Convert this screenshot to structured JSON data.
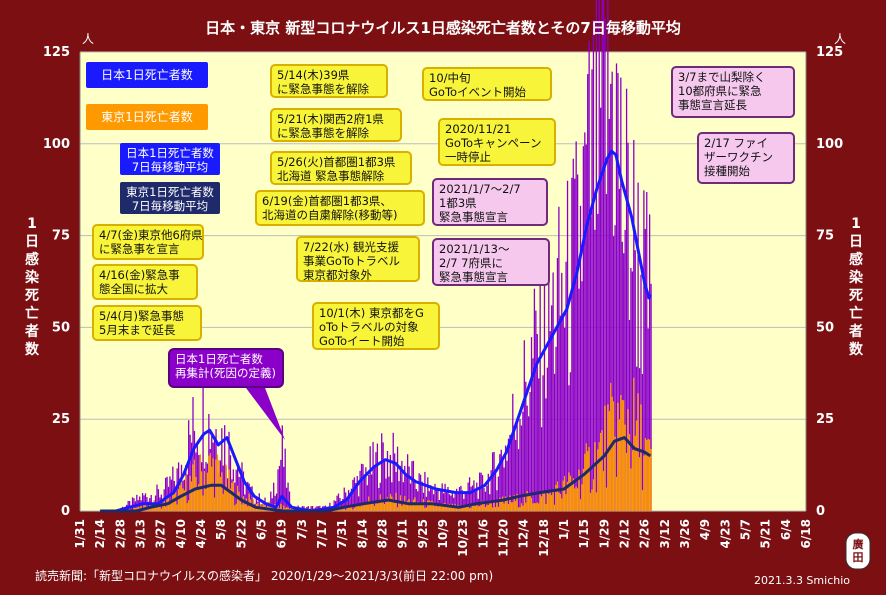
{
  "title": "日本・東京 新型コロナウイルス1日感染死亡者数とその7日毎移動平均",
  "unit_left": "人",
  "unit_right": "人",
  "ylabel": "1日感染死亡者数",
  "source": "読売新聞:「新型コロナウイルスの感染者」 2020/1/29〜2021/3/3(前日 22:00 pm)",
  "signature": "2021.3.3 Smichio",
  "seal": "廣田",
  "colors": {
    "background": "#7b0f12",
    "plot": "#ffffc8",
    "japan": "#8b00c9",
    "tokyo": "#ff9900",
    "japan_avg": "#1a1aff",
    "tokyo_avg": "#1f2a6a",
    "note": "#f7f43a",
    "note_pink": "#f6c8ee"
  },
  "legend": [
    {
      "label": "日本1日死亡者数",
      "color": "#8b00c9"
    },
    {
      "label": "東京1日死亡者数",
      "color": "#ff9900"
    },
    {
      "label": "日本1日死亡者数\n7日毎移動平均",
      "color": "#1a1aff"
    },
    {
      "label": "東京1日死亡者数\n7日毎移動平均",
      "color": "#1f2a6a"
    }
  ],
  "annotations": [
    {
      "text": "4/7(金)東京他6府県\nに緊急事を宣言",
      "style": "yellow"
    },
    {
      "text": "4/16(金)緊急事\n態全国に拡大",
      "style": "yellow"
    },
    {
      "text": "5/4(月)緊急事態\n5月末まで延長",
      "style": "yellow"
    },
    {
      "text": "5/14(木)39県\nに緊急事態を解除",
      "style": "yellow"
    },
    {
      "text": "5/21(木)関西2府1県\nに緊急事態を解除",
      "style": "yellow"
    },
    {
      "text": "5/26(火)首都圏1都3県\n北海道 緊急事態解除",
      "style": "yellow"
    },
    {
      "text": "6/19(金)首都圏1都3県、\n北海道の自粛解除(移動等)",
      "style": "yellow"
    },
    {
      "text": "7/22(水) 観光支援\n事業GoToトラベル\n東京都対象外",
      "style": "yellow"
    },
    {
      "text": "10/1(木) 東京都をG\noToトラベルの対象\nGoToイート開始",
      "style": "yellow"
    },
    {
      "text": "10/中旬\nGoToイベント開始",
      "style": "yellow"
    },
    {
      "text": "2020/11/21\nGoToキャンペーン\n一時停止",
      "style": "yellow"
    },
    {
      "text": "2021/1/7〜2/7\n1都3県\n緊急事態宣言",
      "style": "pink"
    },
    {
      "text": "2021/1/13〜\n2/7 7府県に\n緊急事態宣言",
      "style": "pink"
    },
    {
      "text": "3/7まで山梨除く\n10都府県に緊急\n事態宣言延長",
      "style": "pink"
    },
    {
      "text": "2/17 ファイ\nザーワクチン\n接種開始",
      "style": "pink"
    },
    {
      "text": "日本1日死亡者数\n再集計(死因の定義)",
      "style": "purple"
    }
  ],
  "chart_data": {
    "type": "bar",
    "title": "日本・東京 新型コロナウイルス1日感染死亡者数とその7日毎移動平均",
    "ylabel": "1日感染死亡者数",
    "ylim": [
      0,
      125
    ],
    "yticks": [
      0,
      25,
      50,
      75,
      100,
      125
    ],
    "xlim": [
      "2020-01-31",
      "2021-06-18"
    ],
    "grid": true,
    "xtick_labels": [
      "1/31",
      "2/14",
      "2/28",
      "3/13",
      "3/27",
      "4/10",
      "4/24",
      "5/8",
      "5/22",
      "6/5",
      "6/19",
      "7/3",
      "7/17",
      "7/31",
      "8/14",
      "8/28",
      "9/11",
      "9/25",
      "10/9",
      "10/23",
      "11/6",
      "11/20",
      "12/4",
      "12/18",
      "1/1",
      "1/15",
      "1/29",
      "2/12",
      "2/26",
      "3/12",
      "3/26",
      "4/9",
      "4/23",
      "5/7",
      "5/21",
      "6/4",
      "6/18"
    ],
    "series": [
      {
        "name": "日本1日死亡者数",
        "type": "bar",
        "anchors": [
          [
            "2020-02-24",
            0
          ],
          [
            "2020-03-05",
            2
          ],
          [
            "2020-03-15",
            4
          ],
          [
            "2020-03-28",
            5
          ],
          [
            "2020-04-08",
            10
          ],
          [
            "2020-04-18",
            22
          ],
          [
            "2020-04-25",
            25
          ],
          [
            "2020-05-02",
            23
          ],
          [
            "2020-05-09",
            20
          ],
          [
            "2020-05-16",
            15
          ],
          [
            "2020-05-23",
            8
          ],
          [
            "2020-05-30",
            4
          ],
          [
            "2020-06-10",
            2
          ],
          [
            "2020-06-19",
            16
          ],
          [
            "2020-06-25",
            1
          ],
          [
            "2020-07-08",
            1
          ],
          [
            "2020-07-20",
            1
          ],
          [
            "2020-07-31",
            4
          ],
          [
            "2020-08-10",
            8
          ],
          [
            "2020-08-20",
            12
          ],
          [
            "2020-08-28",
            15
          ],
          [
            "2020-09-04",
            14
          ],
          [
            "2020-09-12",
            12
          ],
          [
            "2020-09-20",
            8
          ],
          [
            "2020-10-01",
            6
          ],
          [
            "2020-10-15",
            5
          ],
          [
            "2020-10-25",
            6
          ],
          [
            "2020-11-05",
            7
          ],
          [
            "2020-11-15",
            12
          ],
          [
            "2020-11-22",
            18
          ],
          [
            "2020-11-29",
            28
          ],
          [
            "2020-12-06",
            35
          ],
          [
            "2020-12-13",
            45
          ],
          [
            "2020-12-20",
            50
          ],
          [
            "2020-12-27",
            55
          ],
          [
            "2021-01-03",
            60
          ],
          [
            "2021-01-10",
            70
          ],
          [
            "2021-01-17",
            88
          ],
          [
            "2021-01-24",
            100
          ],
          [
            "2021-01-31",
            112
          ],
          [
            "2021-02-04",
            114
          ],
          [
            "2021-02-10",
            85
          ],
          [
            "2021-02-17",
            75
          ],
          [
            "2021-02-24",
            62
          ],
          [
            "2021-03-02",
            55
          ]
        ]
      },
      {
        "name": "東京1日死亡者数",
        "type": "bar",
        "anchors": [
          [
            "2020-02-24",
            0
          ],
          [
            "2020-03-10",
            1
          ],
          [
            "2020-03-28",
            2
          ],
          [
            "2020-04-10",
            5
          ],
          [
            "2020-04-20",
            9
          ],
          [
            "2020-05-01",
            12
          ],
          [
            "2020-05-10",
            8
          ],
          [
            "2020-05-20",
            4
          ],
          [
            "2020-06-01",
            2
          ],
          [
            "2020-06-20",
            1
          ],
          [
            "2020-07-15",
            0
          ],
          [
            "2020-08-05",
            1
          ],
          [
            "2020-08-20",
            3
          ],
          [
            "2020-09-05",
            3
          ],
          [
            "2020-09-25",
            2
          ],
          [
            "2020-10-20",
            1
          ],
          [
            "2020-11-10",
            2
          ],
          [
            "2020-12-01",
            3
          ],
          [
            "2020-12-20",
            4
          ],
          [
            "2021-01-10",
            8
          ],
          [
            "2021-01-24",
            15
          ],
          [
            "2021-02-04",
            22
          ],
          [
            "2021-02-14",
            25
          ],
          [
            "2021-02-24",
            18
          ],
          [
            "2021-03-02",
            12
          ]
        ]
      },
      {
        "name": "日本1日死亡者数\n7日毎移動平均",
        "type": "line",
        "points": [
          [
            "2020-02-14",
            0
          ],
          [
            "2020-02-25",
            0
          ],
          [
            "2020-03-05",
            1
          ],
          [
            "2020-03-15",
            2
          ],
          [
            "2020-03-25",
            2
          ],
          [
            "2020-04-05",
            5
          ],
          [
            "2020-04-12",
            10
          ],
          [
            "2020-04-19",
            17
          ],
          [
            "2020-04-26",
            21
          ],
          [
            "2020-04-30",
            22
          ],
          [
            "2020-05-06",
            18
          ],
          [
            "2020-05-12",
            20
          ],
          [
            "2020-05-18",
            14
          ],
          [
            "2020-05-24",
            8
          ],
          [
            "2020-05-31",
            4
          ],
          [
            "2020-06-08",
            2
          ],
          [
            "2020-06-15",
            1
          ],
          [
            "2020-06-19",
            4
          ],
          [
            "2020-06-26",
            1
          ],
          [
            "2020-07-10",
            0
          ],
          [
            "2020-07-25",
            1
          ],
          [
            "2020-08-03",
            3
          ],
          [
            "2020-08-12",
            8
          ],
          [
            "2020-08-22",
            12
          ],
          [
            "2020-08-30",
            14
          ],
          [
            "2020-09-06",
            13
          ],
          [
            "2020-09-13",
            10
          ],
          [
            "2020-09-20",
            8
          ],
          [
            "2020-09-27",
            7
          ],
          [
            "2020-10-04",
            6
          ],
          [
            "2020-10-18",
            5
          ],
          [
            "2020-10-28",
            5
          ],
          [
            "2020-11-07",
            7
          ],
          [
            "2020-11-15",
            11
          ],
          [
            "2020-11-22",
            16
          ],
          [
            "2020-11-29",
            24
          ],
          [
            "2020-12-06",
            32
          ],
          [
            "2020-12-13",
            40
          ],
          [
            "2020-12-20",
            45
          ],
          [
            "2020-12-27",
            50
          ],
          [
            "2021-01-03",
            55
          ],
          [
            "2021-01-10",
            65
          ],
          [
            "2021-01-17",
            78
          ],
          [
            "2021-01-24",
            88
          ],
          [
            "2021-01-31",
            96
          ],
          [
            "2021-02-03",
            98
          ],
          [
            "2021-02-06",
            97
          ],
          [
            "2021-02-10",
            90
          ],
          [
            "2021-02-17",
            80
          ],
          [
            "2021-02-22",
            70
          ],
          [
            "2021-02-26",
            62
          ],
          [
            "2021-03-01",
            58
          ],
          [
            "2021-03-02",
            59
          ]
        ]
      },
      {
        "name": "東京1日死亡者数\n7日毎移動平均",
        "type": "line",
        "points": [
          [
            "2020-02-14",
            0
          ],
          [
            "2020-03-10",
            0
          ],
          [
            "2020-03-20",
            1
          ],
          [
            "2020-04-01",
            2
          ],
          [
            "2020-04-10",
            4
          ],
          [
            "2020-04-20",
            6
          ],
          [
            "2020-05-01",
            7
          ],
          [
            "2020-05-08",
            7
          ],
          [
            "2020-05-15",
            5
          ],
          [
            "2020-05-22",
            3
          ],
          [
            "2020-06-01",
            1
          ],
          [
            "2020-06-20",
            0
          ],
          [
            "2020-07-20",
            0
          ],
          [
            "2020-08-01",
            1
          ],
          [
            "2020-08-15",
            2
          ],
          [
            "2020-09-01",
            3
          ],
          [
            "2020-09-15",
            2
          ],
          [
            "2020-10-01",
            2
          ],
          [
            "2020-10-20",
            1
          ],
          [
            "2020-11-01",
            2
          ],
          [
            "2020-11-20",
            3
          ],
          [
            "2020-12-01",
            4
          ],
          [
            "2020-12-15",
            5
          ],
          [
            "2021-01-01",
            6
          ],
          [
            "2021-01-15",
            10
          ],
          [
            "2021-01-29",
            15
          ],
          [
            "2021-02-05",
            19
          ],
          [
            "2021-02-12",
            20
          ],
          [
            "2021-02-19",
            17
          ],
          [
            "2021-02-26",
            16
          ],
          [
            "2021-03-02",
            15
          ]
        ]
      }
    ]
  }
}
